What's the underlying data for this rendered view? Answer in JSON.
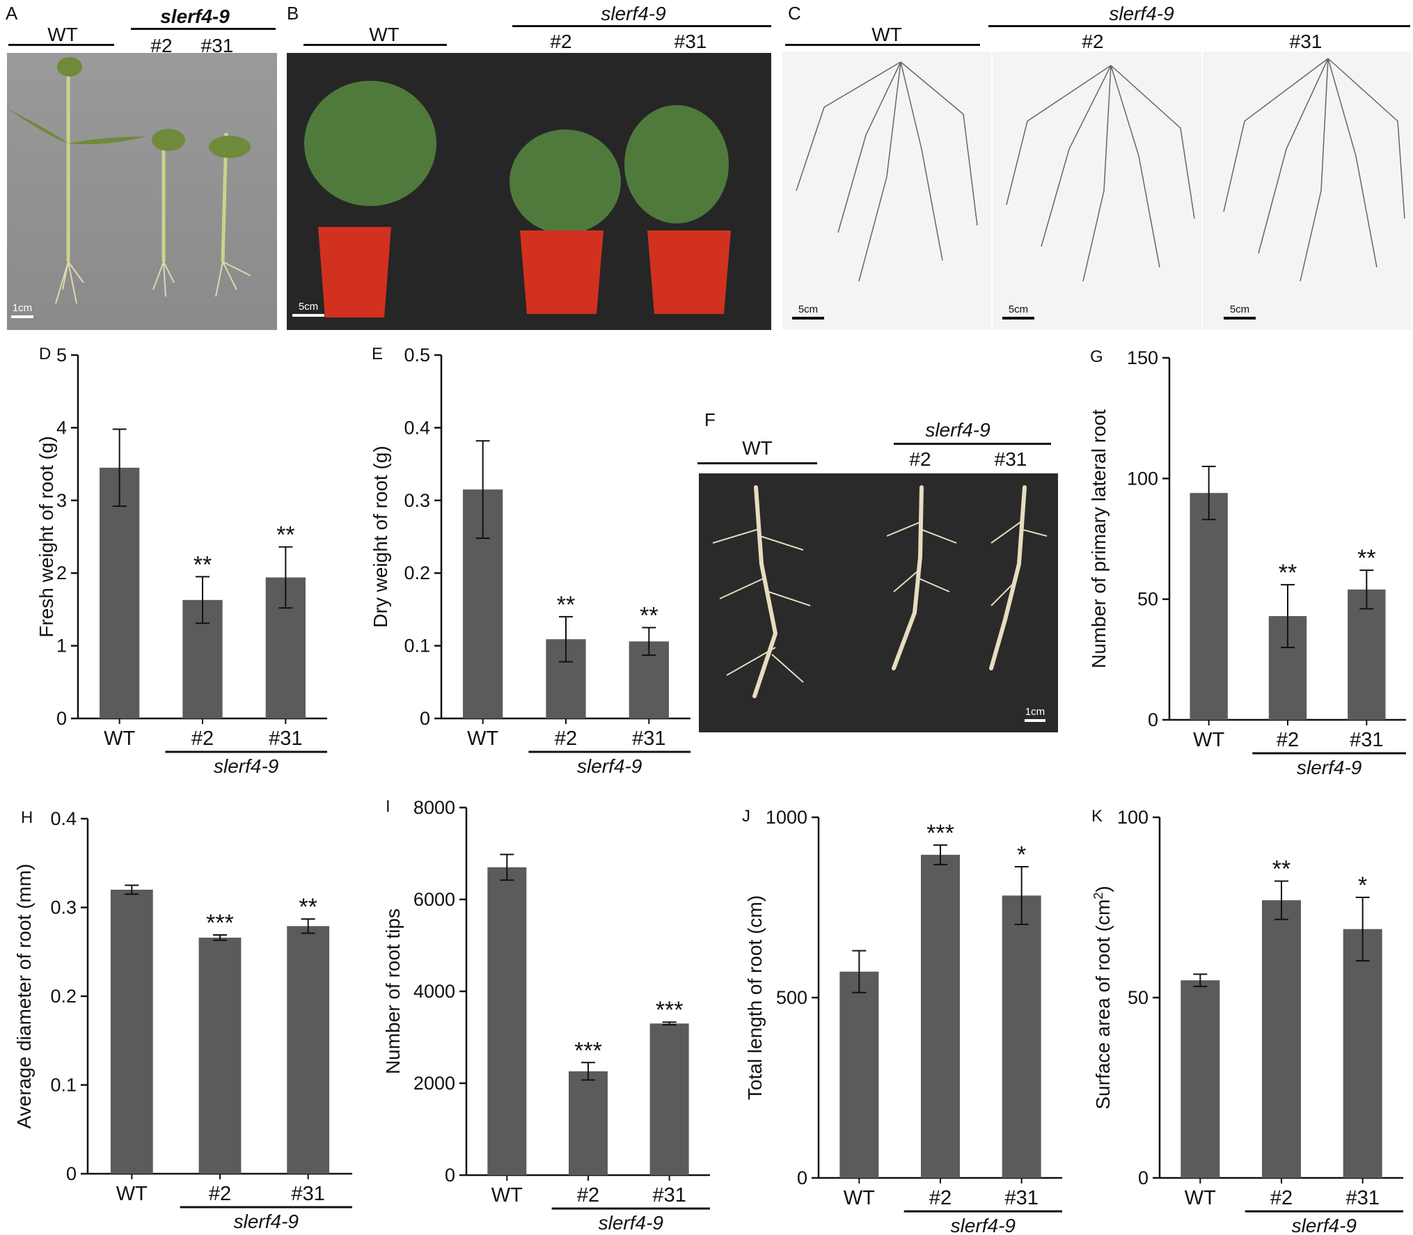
{
  "panels": {
    "A": {
      "letter": "A",
      "wt": "WT",
      "mutant": "slerf4-9",
      "line1": "#2",
      "line2": "#31",
      "scale": "1cm"
    },
    "B": {
      "letter": "B",
      "wt": "WT",
      "mutant": "slerf4-9",
      "line1": "#2",
      "line2": "#31",
      "scale": "5cm"
    },
    "C": {
      "letter": "C",
      "wt": "WT",
      "mutant": "slerf4-9",
      "line1": "#2",
      "line2": "#31",
      "scale": "5cm"
    },
    "F": {
      "letter": "F",
      "wt": "WT",
      "mutant": "slerf4-9",
      "line1": "#2",
      "line2": "#31",
      "scale": "1cm"
    }
  },
  "colors": {
    "bar": "#5b5b5b",
    "axis": "#111111",
    "photo_bg_dark": "#2a2a2a"
  },
  "chart_data": [
    {
      "id": "D",
      "letter": "D",
      "type": "bar",
      "ylabel": "Fresh weight of root (g)",
      "mutant": "slerf4-9",
      "categories": [
        "WT",
        "#2",
        "#31"
      ],
      "values": [
        3.45,
        1.63,
        1.94
      ],
      "errors": [
        0.53,
        0.32,
        0.42
      ],
      "sig": [
        "",
        "**",
        "**"
      ],
      "ylim": [
        0,
        5
      ],
      "ticks": [
        0,
        1,
        2,
        3,
        4,
        5
      ],
      "tick_labels": [
        "0",
        "1",
        "2",
        "3",
        "4",
        "5"
      ]
    },
    {
      "id": "E",
      "letter": "E",
      "type": "bar",
      "ylabel": "Dry weight of root (g)",
      "mutant": "slerf4-9",
      "categories": [
        "WT",
        "#2",
        "#31"
      ],
      "values": [
        0.315,
        0.109,
        0.106
      ],
      "errors": [
        0.067,
        0.031,
        0.019
      ],
      "sig": [
        "",
        "**",
        "**"
      ],
      "ylim": [
        0,
        0.5
      ],
      "ticks": [
        0,
        0.1,
        0.2,
        0.3,
        0.4,
        0.5
      ],
      "tick_labels": [
        "0",
        "0.1",
        "0.2",
        "0.3",
        "0.4",
        "0.5"
      ]
    },
    {
      "id": "G",
      "letter": "G",
      "type": "bar",
      "ylabel": "Number of primary lateral root",
      "mutant": "slerf4-9",
      "categories": [
        "WT",
        "#2",
        "#31"
      ],
      "values": [
        94,
        43,
        54
      ],
      "errors": [
        11,
        13,
        8
      ],
      "sig": [
        "",
        "**",
        "**"
      ],
      "ylim": [
        0,
        150
      ],
      "ticks": [
        0,
        50,
        100,
        150
      ],
      "tick_labels": [
        "0",
        "50",
        "100",
        "150"
      ]
    },
    {
      "id": "H",
      "letter": "H",
      "type": "bar",
      "ylabel": "Average diameter of root (mm)",
      "mutant": "slerf4-9",
      "categories": [
        "WT",
        "#2",
        "#31"
      ],
      "values": [
        0.32,
        0.266,
        0.279
      ],
      "errors": [
        0.005,
        0.003,
        0.008
      ],
      "sig": [
        "",
        "***",
        "**"
      ],
      "ylim": [
        0,
        0.4
      ],
      "ticks": [
        0,
        0.1,
        0.2,
        0.3,
        0.4
      ],
      "tick_labels": [
        "0",
        "0.1",
        "0.2",
        "0.3",
        "0.4"
      ]
    },
    {
      "id": "I",
      "letter": "I",
      "type": "bar",
      "ylabel": "Number of root  tips",
      "mutant": "slerf4-9",
      "categories": [
        "WT",
        "#2",
        "#31"
      ],
      "values": [
        6700,
        2260,
        3300
      ],
      "errors": [
        280,
        190,
        30
      ],
      "sig": [
        "",
        "***",
        "***"
      ],
      "ylim": [
        0,
        8000
      ],
      "ticks": [
        0,
        2000,
        4000,
        6000,
        8000
      ],
      "tick_labels": [
        "0",
        "2000",
        "4000",
        "6000",
        "8000"
      ]
    },
    {
      "id": "J",
      "letter": "J",
      "type": "bar",
      "ylabel": "Total length of root (cm)",
      "mutant": "slerf4-9",
      "categories": [
        "WT",
        "#2",
        "#31"
      ],
      "values": [
        572,
        896,
        783
      ],
      "errors": [
        58,
        27,
        80
      ],
      "sig": [
        "",
        "***",
        "*"
      ],
      "ylim": [
        0,
        1000
      ],
      "ticks": [
        0,
        500,
        1000
      ],
      "tick_labels": [
        "0",
        "500",
        "1000"
      ]
    },
    {
      "id": "K",
      "letter": "K",
      "type": "bar",
      "ylabel": "Surface area of root (cm",
      "ylabel_sup": "2",
      "ylabel_end": ")",
      "mutant": "slerf4-9",
      "categories": [
        "WT",
        "#2",
        "#31"
      ],
      "values": [
        54.8,
        77,
        69
      ],
      "errors": [
        1.7,
        5.3,
        8.8
      ],
      "sig": [
        "",
        "**",
        "*"
      ],
      "ylim": [
        0,
        100
      ],
      "ticks": [
        0,
        50,
        100
      ],
      "tick_labels": [
        "0",
        "50",
        "100"
      ]
    }
  ]
}
